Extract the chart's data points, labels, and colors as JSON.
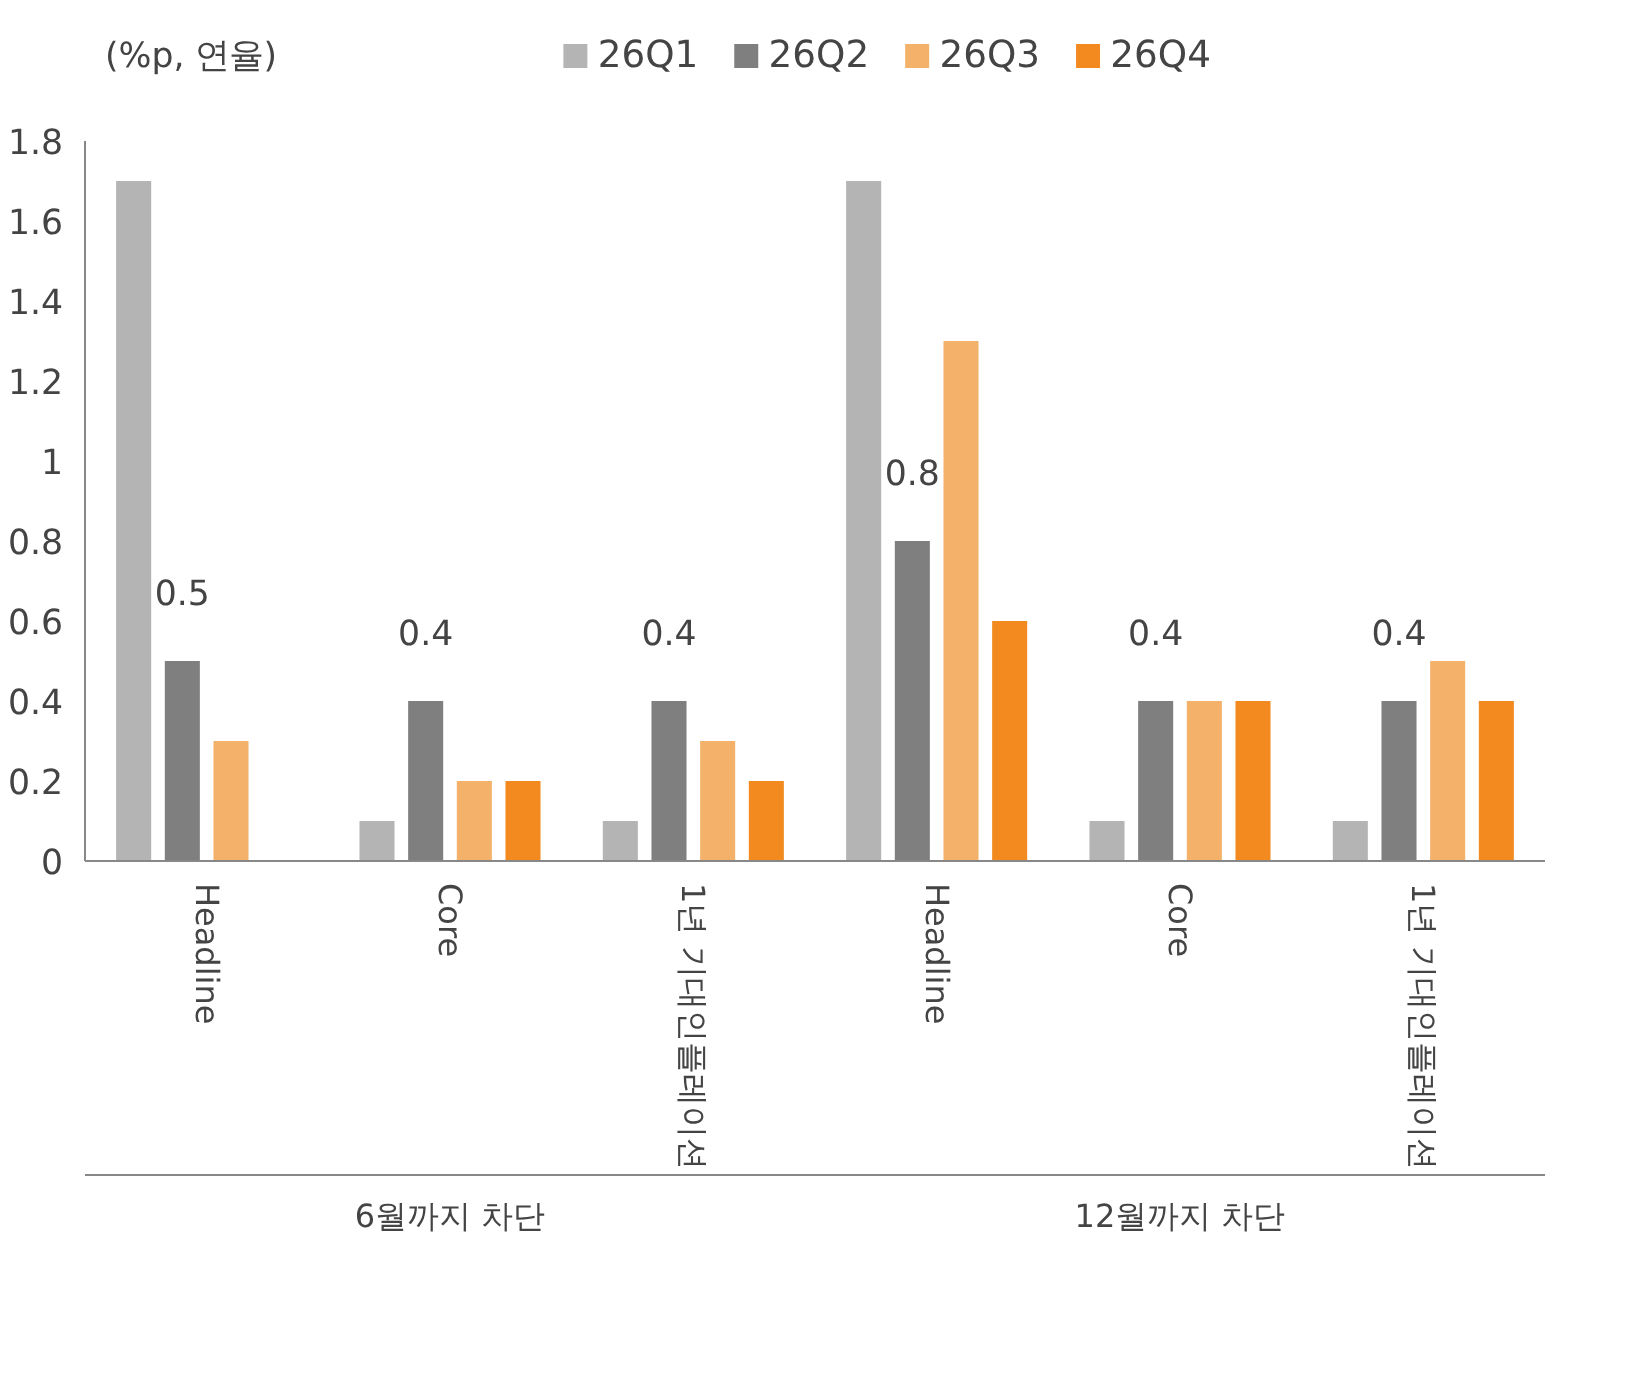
{
  "chart_data": {
    "type": "bar",
    "ylabel": "(%p, 연율)",
    "categories": [
      "Headline",
      "Core",
      "1년 기대인플레이션",
      "Headline",
      "Core",
      "1년 기대인플레이션"
    ],
    "series": [
      {
        "name": "26Q1",
        "color": "#b4b4b4",
        "values": [
          1.7,
          0.1,
          0.1,
          1.7,
          0.1,
          0.1
        ]
      },
      {
        "name": "26Q2",
        "color": "#7f7f7f",
        "values": [
          0.5,
          0.4,
          0.4,
          0.8,
          0.4,
          0.4
        ],
        "value_labels": [
          "0.5",
          "0.4",
          "0.4",
          "0.8",
          "0.4",
          "0.4"
        ]
      },
      {
        "name": "26Q3",
        "color": "#f4b16a",
        "values": [
          0.3,
          0.2,
          0.3,
          1.3,
          0.4,
          0.5
        ]
      },
      {
        "name": "26Q4",
        "color": "#f28a1f",
        "values": [
          null,
          0.2,
          0.2,
          0.6,
          0.4,
          0.4
        ]
      }
    ],
    "annotations": [
      "6월까지 차단",
      "12월까지 차단"
    ],
    "ylim": [
      0,
      1.8
    ],
    "yticks": [
      0,
      0.2,
      0.4,
      0.6,
      0.8,
      1,
      1.2,
      1.4,
      1.6,
      1.8
    ],
    "grid": false,
    "legend": "top"
  }
}
